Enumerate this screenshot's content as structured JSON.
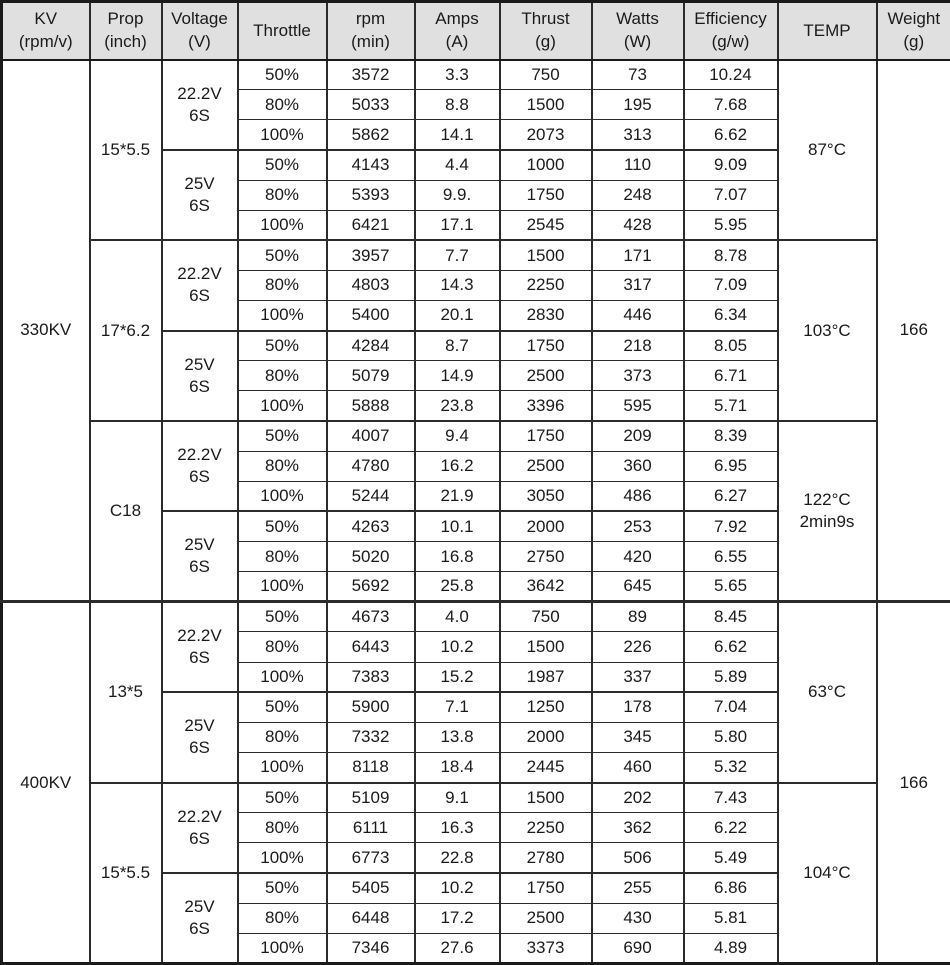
{
  "table_meta": {
    "header_bg": "#e0e0e0",
    "border_color": "#1a1a1a",
    "text_color": "#1a1a1a"
  },
  "chart_data": {
    "type": "table",
    "columns": [
      {
        "key": "kv",
        "lines": [
          "KV",
          "(rpm/v)"
        ]
      },
      {
        "key": "prop",
        "lines": [
          "Prop",
          "(inch)"
        ]
      },
      {
        "key": "voltage",
        "lines": [
          "Voltage",
          "(V)"
        ]
      },
      {
        "key": "throttle",
        "lines": [
          "Throttle"
        ]
      },
      {
        "key": "rpm",
        "lines": [
          "rpm",
          "(min)"
        ]
      },
      {
        "key": "amps",
        "lines": [
          "Amps",
          "(A)"
        ]
      },
      {
        "key": "thrust",
        "lines": [
          "Thrust",
          "(g)"
        ]
      },
      {
        "key": "watts",
        "lines": [
          "Watts",
          "(W)"
        ]
      },
      {
        "key": "efficiency",
        "lines": [
          "Efficiency",
          "(g/w)"
        ]
      },
      {
        "key": "temp",
        "lines": [
          "TEMP"
        ]
      },
      {
        "key": "weight",
        "lines": [
          "Weight",
          "(g)"
        ]
      }
    ],
    "groups": [
      {
        "kv": "330KV",
        "weight": "166",
        "props": [
          {
            "prop": "15*5.5",
            "temp_lines": [
              "87°C"
            ],
            "voltages": [
              {
                "voltage_lines": [
                  "22.2V",
                  "6S"
                ],
                "rows": [
                  {
                    "throttle": "50%",
                    "rpm": "3572",
                    "amps": "3.3",
                    "thrust": "750",
                    "watts": "73",
                    "efficiency": "10.24"
                  },
                  {
                    "throttle": "80%",
                    "rpm": "5033",
                    "amps": "8.8",
                    "thrust": "1500",
                    "watts": "195",
                    "efficiency": "7.68"
                  },
                  {
                    "throttle": "100%",
                    "rpm": "5862",
                    "amps": "14.1",
                    "thrust": "2073",
                    "watts": "313",
                    "efficiency": "6.62"
                  }
                ]
              },
              {
                "voltage_lines": [
                  "25V",
                  "6S"
                ],
                "rows": [
                  {
                    "throttle": "50%",
                    "rpm": "4143",
                    "amps": "4.4",
                    "thrust": "1000",
                    "watts": "110",
                    "efficiency": "9.09"
                  },
                  {
                    "throttle": "80%",
                    "rpm": "5393",
                    "amps": "9.9.",
                    "thrust": "1750",
                    "watts": "248",
                    "efficiency": "7.07"
                  },
                  {
                    "throttle": "100%",
                    "rpm": "6421",
                    "amps": "17.1",
                    "thrust": "2545",
                    "watts": "428",
                    "efficiency": "5.95"
                  }
                ]
              }
            ]
          },
          {
            "prop": "17*6.2",
            "temp_lines": [
              "103°C"
            ],
            "voltages": [
              {
                "voltage_lines": [
                  "22.2V",
                  "6S"
                ],
                "rows": [
                  {
                    "throttle": "50%",
                    "rpm": "3957",
                    "amps": "7.7",
                    "thrust": "1500",
                    "watts": "171",
                    "efficiency": "8.78"
                  },
                  {
                    "throttle": "80%",
                    "rpm": "4803",
                    "amps": "14.3",
                    "thrust": "2250",
                    "watts": "317",
                    "efficiency": "7.09"
                  },
                  {
                    "throttle": "100%",
                    "rpm": "5400",
                    "amps": "20.1",
                    "thrust": "2830",
                    "watts": "446",
                    "efficiency": "6.34"
                  }
                ]
              },
              {
                "voltage_lines": [
                  "25V",
                  "6S"
                ],
                "rows": [
                  {
                    "throttle": "50%",
                    "rpm": "4284",
                    "amps": "8.7",
                    "thrust": "1750",
                    "watts": "218",
                    "efficiency": "8.05"
                  },
                  {
                    "throttle": "80%",
                    "rpm": "5079",
                    "amps": "14.9",
                    "thrust": "2500",
                    "watts": "373",
                    "efficiency": "6.71"
                  },
                  {
                    "throttle": "100%",
                    "rpm": "5888",
                    "amps": "23.8",
                    "thrust": "3396",
                    "watts": "595",
                    "efficiency": "5.71"
                  }
                ]
              }
            ]
          },
          {
            "prop": "C18",
            "temp_lines": [
              "122°C",
              "2min9s"
            ],
            "voltages": [
              {
                "voltage_lines": [
                  "22.2V",
                  "6S"
                ],
                "rows": [
                  {
                    "throttle": "50%",
                    "rpm": "4007",
                    "amps": "9.4",
                    "thrust": "1750",
                    "watts": "209",
                    "efficiency": "8.39"
                  },
                  {
                    "throttle": "80%",
                    "rpm": "4780",
                    "amps": "16.2",
                    "thrust": "2500",
                    "watts": "360",
                    "efficiency": "6.95"
                  },
                  {
                    "throttle": "100%",
                    "rpm": "5244",
                    "amps": "21.9",
                    "thrust": "3050",
                    "watts": "486",
                    "efficiency": "6.27"
                  }
                ]
              },
              {
                "voltage_lines": [
                  "25V",
                  "6S"
                ],
                "rows": [
                  {
                    "throttle": "50%",
                    "rpm": "4263",
                    "amps": "10.1",
                    "thrust": "2000",
                    "watts": "253",
                    "efficiency": "7.92"
                  },
                  {
                    "throttle": "80%",
                    "rpm": "5020",
                    "amps": "16.8",
                    "thrust": "2750",
                    "watts": "420",
                    "efficiency": "6.55"
                  },
                  {
                    "throttle": "100%",
                    "rpm": "5692",
                    "amps": "25.8",
                    "thrust": "3642",
                    "watts": "645",
                    "efficiency": "5.65"
                  }
                ]
              }
            ]
          }
        ]
      },
      {
        "kv": "400KV",
        "weight": "166",
        "props": [
          {
            "prop": "13*5",
            "temp_lines": [
              "63°C"
            ],
            "voltages": [
              {
                "voltage_lines": [
                  "22.2V",
                  "6S"
                ],
                "rows": [
                  {
                    "throttle": "50%",
                    "rpm": "4673",
                    "amps": "4.0",
                    "thrust": "750",
                    "watts": "89",
                    "efficiency": "8.45"
                  },
                  {
                    "throttle": "80%",
                    "rpm": "6443",
                    "amps": "10.2",
                    "thrust": "1500",
                    "watts": "226",
                    "efficiency": "6.62"
                  },
                  {
                    "throttle": "100%",
                    "rpm": "7383",
                    "amps": "15.2",
                    "thrust": "1987",
                    "watts": "337",
                    "efficiency": "5.89"
                  }
                ]
              },
              {
                "voltage_lines": [
                  "25V",
                  "6S"
                ],
                "rows": [
                  {
                    "throttle": "50%",
                    "rpm": "5900",
                    "amps": "7.1",
                    "thrust": "1250",
                    "watts": "178",
                    "efficiency": "7.04"
                  },
                  {
                    "throttle": "80%",
                    "rpm": "7332",
                    "amps": "13.8",
                    "thrust": "2000",
                    "watts": "345",
                    "efficiency": "5.80"
                  },
                  {
                    "throttle": "100%",
                    "rpm": "8118",
                    "amps": "18.4",
                    "thrust": "2445",
                    "watts": "460",
                    "efficiency": "5.32"
                  }
                ]
              }
            ]
          },
          {
            "prop": "15*5.5",
            "temp_lines": [
              "104°C"
            ],
            "voltages": [
              {
                "voltage_lines": [
                  "22.2V",
                  "6S"
                ],
                "rows": [
                  {
                    "throttle": "50%",
                    "rpm": "5109",
                    "amps": "9.1",
                    "thrust": "1500",
                    "watts": "202",
                    "efficiency": "7.43"
                  },
                  {
                    "throttle": "80%",
                    "rpm": "6111",
                    "amps": "16.3",
                    "thrust": "2250",
                    "watts": "362",
                    "efficiency": "6.22"
                  },
                  {
                    "throttle": "100%",
                    "rpm": "6773",
                    "amps": "22.8",
                    "thrust": "2780",
                    "watts": "506",
                    "efficiency": "5.49"
                  }
                ]
              },
              {
                "voltage_lines": [
                  "25V",
                  "6S"
                ],
                "rows": [
                  {
                    "throttle": "50%",
                    "rpm": "5405",
                    "amps": "10.2",
                    "thrust": "1750",
                    "watts": "255",
                    "efficiency": "6.86"
                  },
                  {
                    "throttle": "80%",
                    "rpm": "6448",
                    "amps": "17.2",
                    "thrust": "2500",
                    "watts": "430",
                    "efficiency": "5.81"
                  },
                  {
                    "throttle": "100%",
                    "rpm": "7346",
                    "amps": "27.6",
                    "thrust": "3373",
                    "watts": "690",
                    "efficiency": "4.89"
                  }
                ]
              }
            ]
          }
        ]
      }
    ]
  }
}
